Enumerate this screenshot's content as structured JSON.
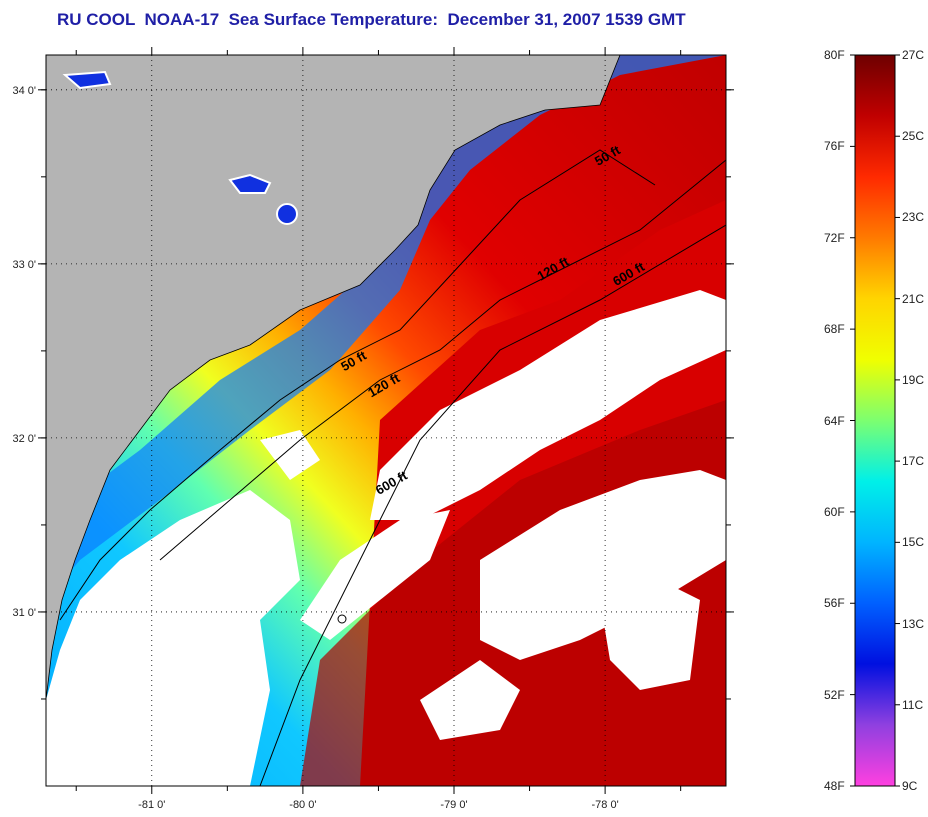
{
  "title": "RU COOL  NOAA-17  Sea Surface Temperature:  December 31, 2007 1539 GMT",
  "map": {
    "lon_range": [
      -81.7,
      -77.2
    ],
    "lat_range": [
      30.0,
      34.2
    ],
    "lon_ticks": [
      {
        "value": -81,
        "label": "-81 0'"
      },
      {
        "value": -80,
        "label": "-80 0'"
      },
      {
        "value": -79,
        "label": "-79 0'"
      },
      {
        "value": -78,
        "label": "-78 0'"
      }
    ],
    "lat_ticks": [
      {
        "value": 31,
        "label": "31 0'"
      },
      {
        "value": 32,
        "label": "32 0'"
      },
      {
        "value": 33,
        "label": "33 0'"
      },
      {
        "value": 34,
        "label": "34 0'"
      }
    ],
    "grid": "dotted",
    "land_color": "#b4b4b4",
    "cloud_color": "#ffffff",
    "isobath_labels": [
      {
        "text": "50 ft",
        "lon": -77.97,
        "lat": 33.6
      },
      {
        "text": "120 ft",
        "lon": -78.33,
        "lat": 32.95
      },
      {
        "text": "600 ft",
        "lon": -77.83,
        "lat": 32.92
      },
      {
        "text": "50 ft",
        "lon": -79.65,
        "lat": 32.42
      },
      {
        "text": "120 ft",
        "lon": -79.45,
        "lat": 32.28
      },
      {
        "text": "600 ft",
        "lon": -79.4,
        "lat": 31.72
      }
    ]
  },
  "colorbar": {
    "f_labels": [
      "80F",
      "76F",
      "72F",
      "68F",
      "64F",
      "60F",
      "56F",
      "52F",
      "48F"
    ],
    "c_labels": [
      "27C",
      "25C",
      "23C",
      "21C",
      "19C",
      "17C",
      "15C",
      "13C",
      "11C",
      "9C"
    ],
    "colors_top_to_bottom": [
      "#6e0000",
      "#c00000",
      "#ff2a00",
      "#ff7a00",
      "#ffd400",
      "#f0ff00",
      "#7cff70",
      "#00f0e8",
      "#00b4ff",
      "#0060ff",
      "#0010e0",
      "#9040e0",
      "#ff40e0"
    ]
  }
}
